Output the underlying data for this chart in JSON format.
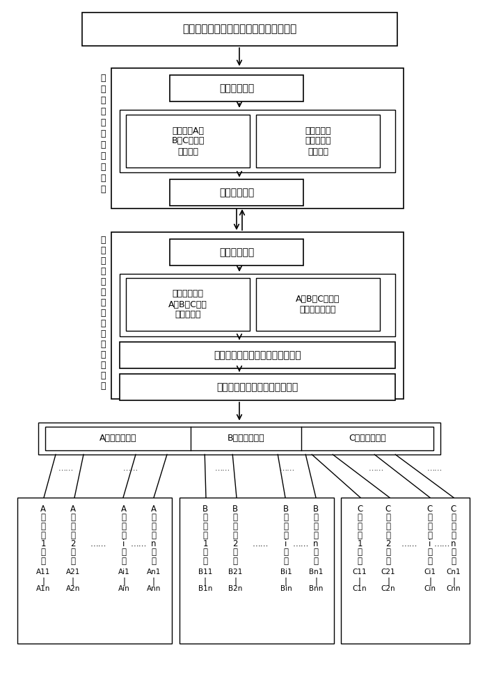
{
  "bg_color": "#ffffff",
  "text_color": "#000000",
  "title_top": "县供电公司已有或新建后台信息管理系统",
  "label_pbian": [
    "配",
    "变",
    "低",
    "压",
    "侧",
    "配",
    "置",
    "单",
    "元",
    "组",
    "成"
  ],
  "label_dizhu": [
    "低",
    "压",
    "主",
    "干",
    "线",
    "分",
    "支",
    "枝",
    "组",
    "配",
    "置",
    "单",
    "元",
    "组",
    "成"
  ],
  "box1_text": "上行通信单元",
  "box2a_text": "配变低压A、\nB、C相负荷\n监测单元",
  "box2b_text": "配变低压负\n荷不平衡度\n监测单元",
  "box3_text": "下行通信单元",
  "box4_text": "上行通信单元",
  "box5a_text": "低压主干线路\nA、B、C相负\n荷监测单元",
  "box5b_text": "A、B、C相各分\n支负荷监测单元",
  "box6_text": "在线负荷调相策略判断与控制单元",
  "box7_text": "在线负荷调相切换开关组合单元",
  "term_A": "A相支线端子排",
  "term_B": "B相支线端子排",
  "term_C": "C相支线端子排"
}
